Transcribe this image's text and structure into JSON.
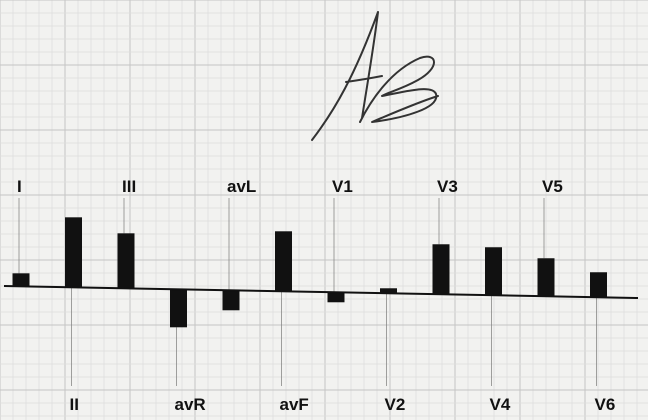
{
  "chart_data": {
    "type": "bar",
    "title": "",
    "xlabel": "",
    "ylabel": "",
    "categories": [
      "I",
      "II",
      "III",
      "avR",
      "avL",
      "avF",
      "V1",
      "V2",
      "V3",
      "V4",
      "V5",
      "V6"
    ],
    "values": [
      13,
      70,
      55,
      -38,
      -20,
      60,
      -10,
      5,
      50,
      48,
      38,
      25
    ],
    "ylim": [
      -60,
      110
    ],
    "grid": true,
    "legend": "none",
    "colors": {
      "bar": "#111111",
      "baseline": "#111111",
      "grid_minor": "#dcdcdc",
      "grid_major": "#c4c4c4",
      "background": "#f2f2f0"
    }
  },
  "signature": {
    "text": "AB",
    "color": "#333333"
  }
}
